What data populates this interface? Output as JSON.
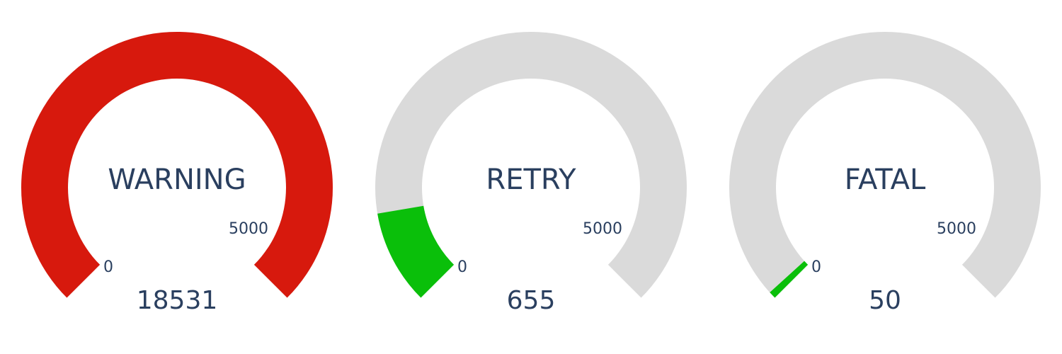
{
  "chart_data": [
    {
      "type": "gauge",
      "title": "WARNING",
      "value": 18531,
      "value_label": "18531",
      "range": [
        0,
        5000
      ],
      "tick_labels": [
        "0",
        "5000"
      ],
      "bar_color": "#d7190d",
      "track_color": "#dadada"
    },
    {
      "type": "gauge",
      "title": "RETRY",
      "value": 655,
      "value_label": "655",
      "range": [
        0,
        5000
      ],
      "tick_labels": [
        "0",
        "5000"
      ],
      "bar_color": "#0abf0a",
      "track_color": "#dadada"
    },
    {
      "type": "gauge",
      "title": "FATAL",
      "value": 50,
      "value_label": "50",
      "range": [
        0,
        5000
      ],
      "tick_labels": [
        "0",
        "5000"
      ],
      "bar_color": "#0abf0a",
      "track_color": "#dadada"
    }
  ]
}
